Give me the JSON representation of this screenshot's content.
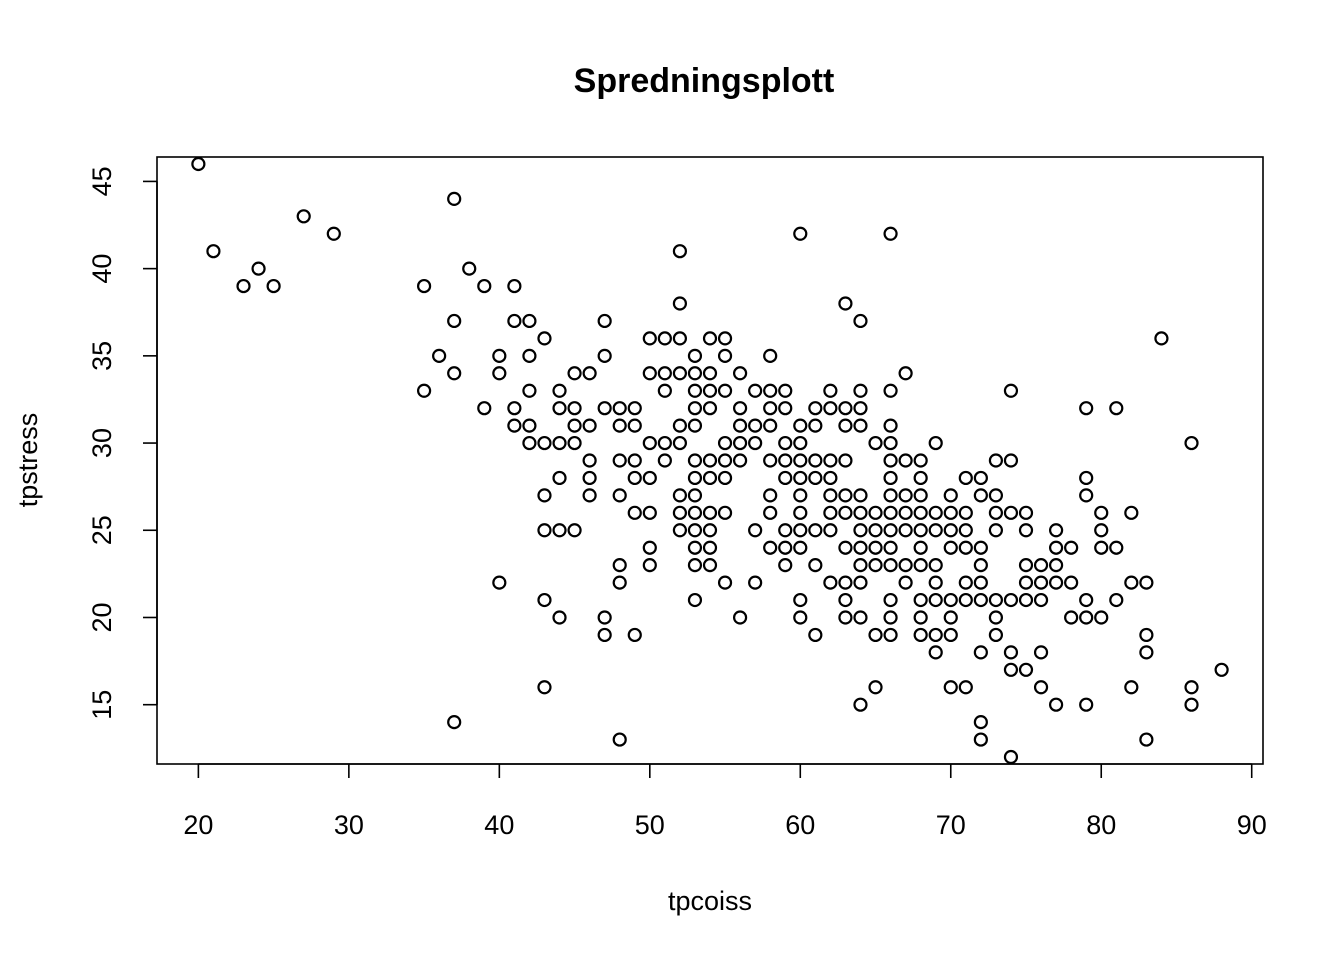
{
  "chart_data": {
    "type": "scatter",
    "title": "Spredningsplott",
    "xlabel": "tpcoiss",
    "ylabel": "tpstress",
    "xlim": [
      17.25,
      90.75
    ],
    "ylim": [
      11.6,
      46.4
    ],
    "xticks": [
      20,
      30,
      40,
      50,
      60,
      70,
      80,
      90
    ],
    "yticks": [
      15,
      20,
      25,
      30,
      35,
      40,
      45
    ],
    "grid": false,
    "legend": "none",
    "marker": "open-circle",
    "color": "#000000",
    "points": [
      [
        20,
        46
      ],
      [
        21,
        41
      ],
      [
        23,
        39
      ],
      [
        24,
        40
      ],
      [
        25,
        39
      ],
      [
        27,
        43
      ],
      [
        29,
        42
      ],
      [
        35,
        39
      ],
      [
        35,
        33
      ],
      [
        36,
        35
      ],
      [
        37,
        44
      ],
      [
        37,
        37
      ],
      [
        37,
        34
      ],
      [
        37,
        14
      ],
      [
        38,
        40
      ],
      [
        39,
        39
      ],
      [
        39,
        32
      ],
      [
        40,
        35
      ],
      [
        40,
        34
      ],
      [
        40,
        22
      ],
      [
        41,
        39
      ],
      [
        41,
        37
      ],
      [
        41,
        32
      ],
      [
        41,
        31
      ],
      [
        42,
        37
      ],
      [
        42,
        35
      ],
      [
        42,
        33
      ],
      [
        42,
        31
      ],
      [
        42,
        30
      ],
      [
        43,
        36
      ],
      [
        43,
        30
      ],
      [
        43,
        27
      ],
      [
        43,
        25
      ],
      [
        43,
        21
      ],
      [
        43,
        16
      ],
      [
        44,
        33
      ],
      [
        44,
        32
      ],
      [
        44,
        30
      ],
      [
        44,
        28
      ],
      [
        44,
        25
      ],
      [
        44,
        20
      ],
      [
        45,
        34
      ],
      [
        45,
        32
      ],
      [
        45,
        31
      ],
      [
        45,
        30
      ],
      [
        45,
        25
      ],
      [
        46,
        34
      ],
      [
        46,
        31
      ],
      [
        46,
        29
      ],
      [
        46,
        28
      ],
      [
        46,
        27
      ],
      [
        47,
        37
      ],
      [
        47,
        35
      ],
      [
        47,
        32
      ],
      [
        47,
        20
      ],
      [
        47,
        19
      ],
      [
        48,
        32
      ],
      [
        48,
        31
      ],
      [
        48,
        29
      ],
      [
        48,
        27
      ],
      [
        48,
        23
      ],
      [
        48,
        22
      ],
      [
        48,
        13
      ],
      [
        49,
        32
      ],
      [
        49,
        31
      ],
      [
        49,
        29
      ],
      [
        49,
        28
      ],
      [
        49,
        26
      ],
      [
        49,
        19
      ],
      [
        50,
        36
      ],
      [
        50,
        34
      ],
      [
        50,
        30
      ],
      [
        50,
        28
      ],
      [
        50,
        26
      ],
      [
        50,
        24
      ],
      [
        50,
        23
      ],
      [
        51,
        36
      ],
      [
        51,
        34
      ],
      [
        51,
        33
      ],
      [
        51,
        30
      ],
      [
        51,
        29
      ],
      [
        52,
        41
      ],
      [
        52,
        38
      ],
      [
        52,
        36
      ],
      [
        52,
        34
      ],
      [
        52,
        31
      ],
      [
        52,
        30
      ],
      [
        52,
        27
      ],
      [
        52,
        26
      ],
      [
        52,
        25
      ],
      [
        53,
        35
      ],
      [
        53,
        34
      ],
      [
        53,
        33
      ],
      [
        53,
        32
      ],
      [
        53,
        31
      ],
      [
        53,
        29
      ],
      [
        53,
        28
      ],
      [
        53,
        27
      ],
      [
        53,
        26
      ],
      [
        53,
        25
      ],
      [
        53,
        24
      ],
      [
        53,
        23
      ],
      [
        53,
        21
      ],
      [
        54,
        36
      ],
      [
        54,
        34
      ],
      [
        54,
        33
      ],
      [
        54,
        32
      ],
      [
        54,
        29
      ],
      [
        54,
        28
      ],
      [
        54,
        26
      ],
      [
        54,
        25
      ],
      [
        54,
        24
      ],
      [
        54,
        23
      ],
      [
        55,
        36
      ],
      [
        55,
        35
      ],
      [
        55,
        33
      ],
      [
        55,
        30
      ],
      [
        55,
        29
      ],
      [
        55,
        28
      ],
      [
        55,
        26
      ],
      [
        55,
        22
      ],
      [
        56,
        34
      ],
      [
        56,
        32
      ],
      [
        56,
        31
      ],
      [
        56,
        30
      ],
      [
        56,
        29
      ],
      [
        56,
        20
      ],
      [
        57,
        33
      ],
      [
        57,
        31
      ],
      [
        57,
        30
      ],
      [
        57,
        25
      ],
      [
        57,
        22
      ],
      [
        58,
        35
      ],
      [
        58,
        33
      ],
      [
        58,
        32
      ],
      [
        58,
        31
      ],
      [
        58,
        29
      ],
      [
        58,
        27
      ],
      [
        58,
        26
      ],
      [
        58,
        24
      ],
      [
        59,
        33
      ],
      [
        59,
        32
      ],
      [
        59,
        30
      ],
      [
        59,
        29
      ],
      [
        59,
        28
      ],
      [
        59,
        25
      ],
      [
        59,
        24
      ],
      [
        59,
        23
      ],
      [
        60,
        42
      ],
      [
        60,
        31
      ],
      [
        60,
        30
      ],
      [
        60,
        29
      ],
      [
        60,
        28
      ],
      [
        60,
        27
      ],
      [
        60,
        26
      ],
      [
        60,
        25
      ],
      [
        60,
        24
      ],
      [
        60,
        21
      ],
      [
        60,
        20
      ],
      [
        61,
        32
      ],
      [
        61,
        31
      ],
      [
        61,
        29
      ],
      [
        61,
        28
      ],
      [
        61,
        25
      ],
      [
        61,
        23
      ],
      [
        61,
        19
      ],
      [
        62,
        33
      ],
      [
        62,
        32
      ],
      [
        62,
        29
      ],
      [
        62,
        28
      ],
      [
        62,
        27
      ],
      [
        62,
        26
      ],
      [
        62,
        25
      ],
      [
        62,
        22
      ],
      [
        63,
        38
      ],
      [
        63,
        32
      ],
      [
        63,
        31
      ],
      [
        63,
        29
      ],
      [
        63,
        27
      ],
      [
        63,
        26
      ],
      [
        63,
        24
      ],
      [
        63,
        22
      ],
      [
        63,
        21
      ],
      [
        63,
        20
      ],
      [
        64,
        37
      ],
      [
        64,
        33
      ],
      [
        64,
        32
      ],
      [
        64,
        31
      ],
      [
        64,
        27
      ],
      [
        64,
        26
      ],
      [
        64,
        25
      ],
      [
        64,
        24
      ],
      [
        64,
        23
      ],
      [
        64,
        22
      ],
      [
        64,
        20
      ],
      [
        64,
        15
      ],
      [
        65,
        30
      ],
      [
        65,
        26
      ],
      [
        65,
        25
      ],
      [
        65,
        24
      ],
      [
        65,
        23
      ],
      [
        65,
        19
      ],
      [
        65,
        16
      ],
      [
        66,
        42
      ],
      [
        66,
        33
      ],
      [
        66,
        31
      ],
      [
        66,
        30
      ],
      [
        66,
        29
      ],
      [
        66,
        28
      ],
      [
        66,
        27
      ],
      [
        66,
        26
      ],
      [
        66,
        25
      ],
      [
        66,
        24
      ],
      [
        66,
        23
      ],
      [
        66,
        21
      ],
      [
        66,
        20
      ],
      [
        66,
        19
      ],
      [
        67,
        34
      ],
      [
        67,
        29
      ],
      [
        67,
        27
      ],
      [
        67,
        26
      ],
      [
        67,
        25
      ],
      [
        67,
        23
      ],
      [
        67,
        22
      ],
      [
        68,
        29
      ],
      [
        68,
        28
      ],
      [
        68,
        27
      ],
      [
        68,
        26
      ],
      [
        68,
        25
      ],
      [
        68,
        24
      ],
      [
        68,
        23
      ],
      [
        68,
        21
      ],
      [
        68,
        20
      ],
      [
        68,
        19
      ],
      [
        69,
        30
      ],
      [
        69,
        26
      ],
      [
        69,
        25
      ],
      [
        69,
        23
      ],
      [
        69,
        22
      ],
      [
        69,
        21
      ],
      [
        69,
        19
      ],
      [
        69,
        18
      ],
      [
        70,
        27
      ],
      [
        70,
        26
      ],
      [
        70,
        25
      ],
      [
        70,
        24
      ],
      [
        70,
        21
      ],
      [
        70,
        20
      ],
      [
        70,
        19
      ],
      [
        70,
        16
      ],
      [
        71,
        28
      ],
      [
        71,
        26
      ],
      [
        71,
        25
      ],
      [
        71,
        24
      ],
      [
        71,
        22
      ],
      [
        71,
        21
      ],
      [
        71,
        16
      ],
      [
        72,
        28
      ],
      [
        72,
        27
      ],
      [
        72,
        24
      ],
      [
        72,
        23
      ],
      [
        72,
        22
      ],
      [
        72,
        21
      ],
      [
        72,
        18
      ],
      [
        72,
        14
      ],
      [
        72,
        13
      ],
      [
        73,
        29
      ],
      [
        73,
        27
      ],
      [
        73,
        26
      ],
      [
        73,
        25
      ],
      [
        73,
        21
      ],
      [
        73,
        20
      ],
      [
        73,
        19
      ],
      [
        74,
        33
      ],
      [
        74,
        29
      ],
      [
        74,
        26
      ],
      [
        74,
        21
      ],
      [
        74,
        18
      ],
      [
        74,
        17
      ],
      [
        74,
        12
      ],
      [
        75,
        26
      ],
      [
        75,
        25
      ],
      [
        75,
        23
      ],
      [
        75,
        22
      ],
      [
        75,
        21
      ],
      [
        75,
        17
      ],
      [
        76,
        23
      ],
      [
        76,
        22
      ],
      [
        76,
        21
      ],
      [
        76,
        18
      ],
      [
        76,
        16
      ],
      [
        77,
        25
      ],
      [
        77,
        24
      ],
      [
        77,
        23
      ],
      [
        77,
        22
      ],
      [
        77,
        15
      ],
      [
        78,
        24
      ],
      [
        78,
        22
      ],
      [
        78,
        20
      ],
      [
        79,
        32
      ],
      [
        79,
        28
      ],
      [
        79,
        27
      ],
      [
        79,
        21
      ],
      [
        79,
        20
      ],
      [
        79,
        15
      ],
      [
        80,
        26
      ],
      [
        80,
        25
      ],
      [
        80,
        24
      ],
      [
        80,
        20
      ],
      [
        81,
        32
      ],
      [
        81,
        24
      ],
      [
        81,
        21
      ],
      [
        82,
        26
      ],
      [
        82,
        22
      ],
      [
        82,
        16
      ],
      [
        83,
        22
      ],
      [
        83,
        19
      ],
      [
        83,
        18
      ],
      [
        83,
        13
      ],
      [
        84,
        36
      ],
      [
        86,
        30
      ],
      [
        86,
        16
      ],
      [
        86,
        15
      ],
      [
        88,
        17
      ]
    ]
  }
}
